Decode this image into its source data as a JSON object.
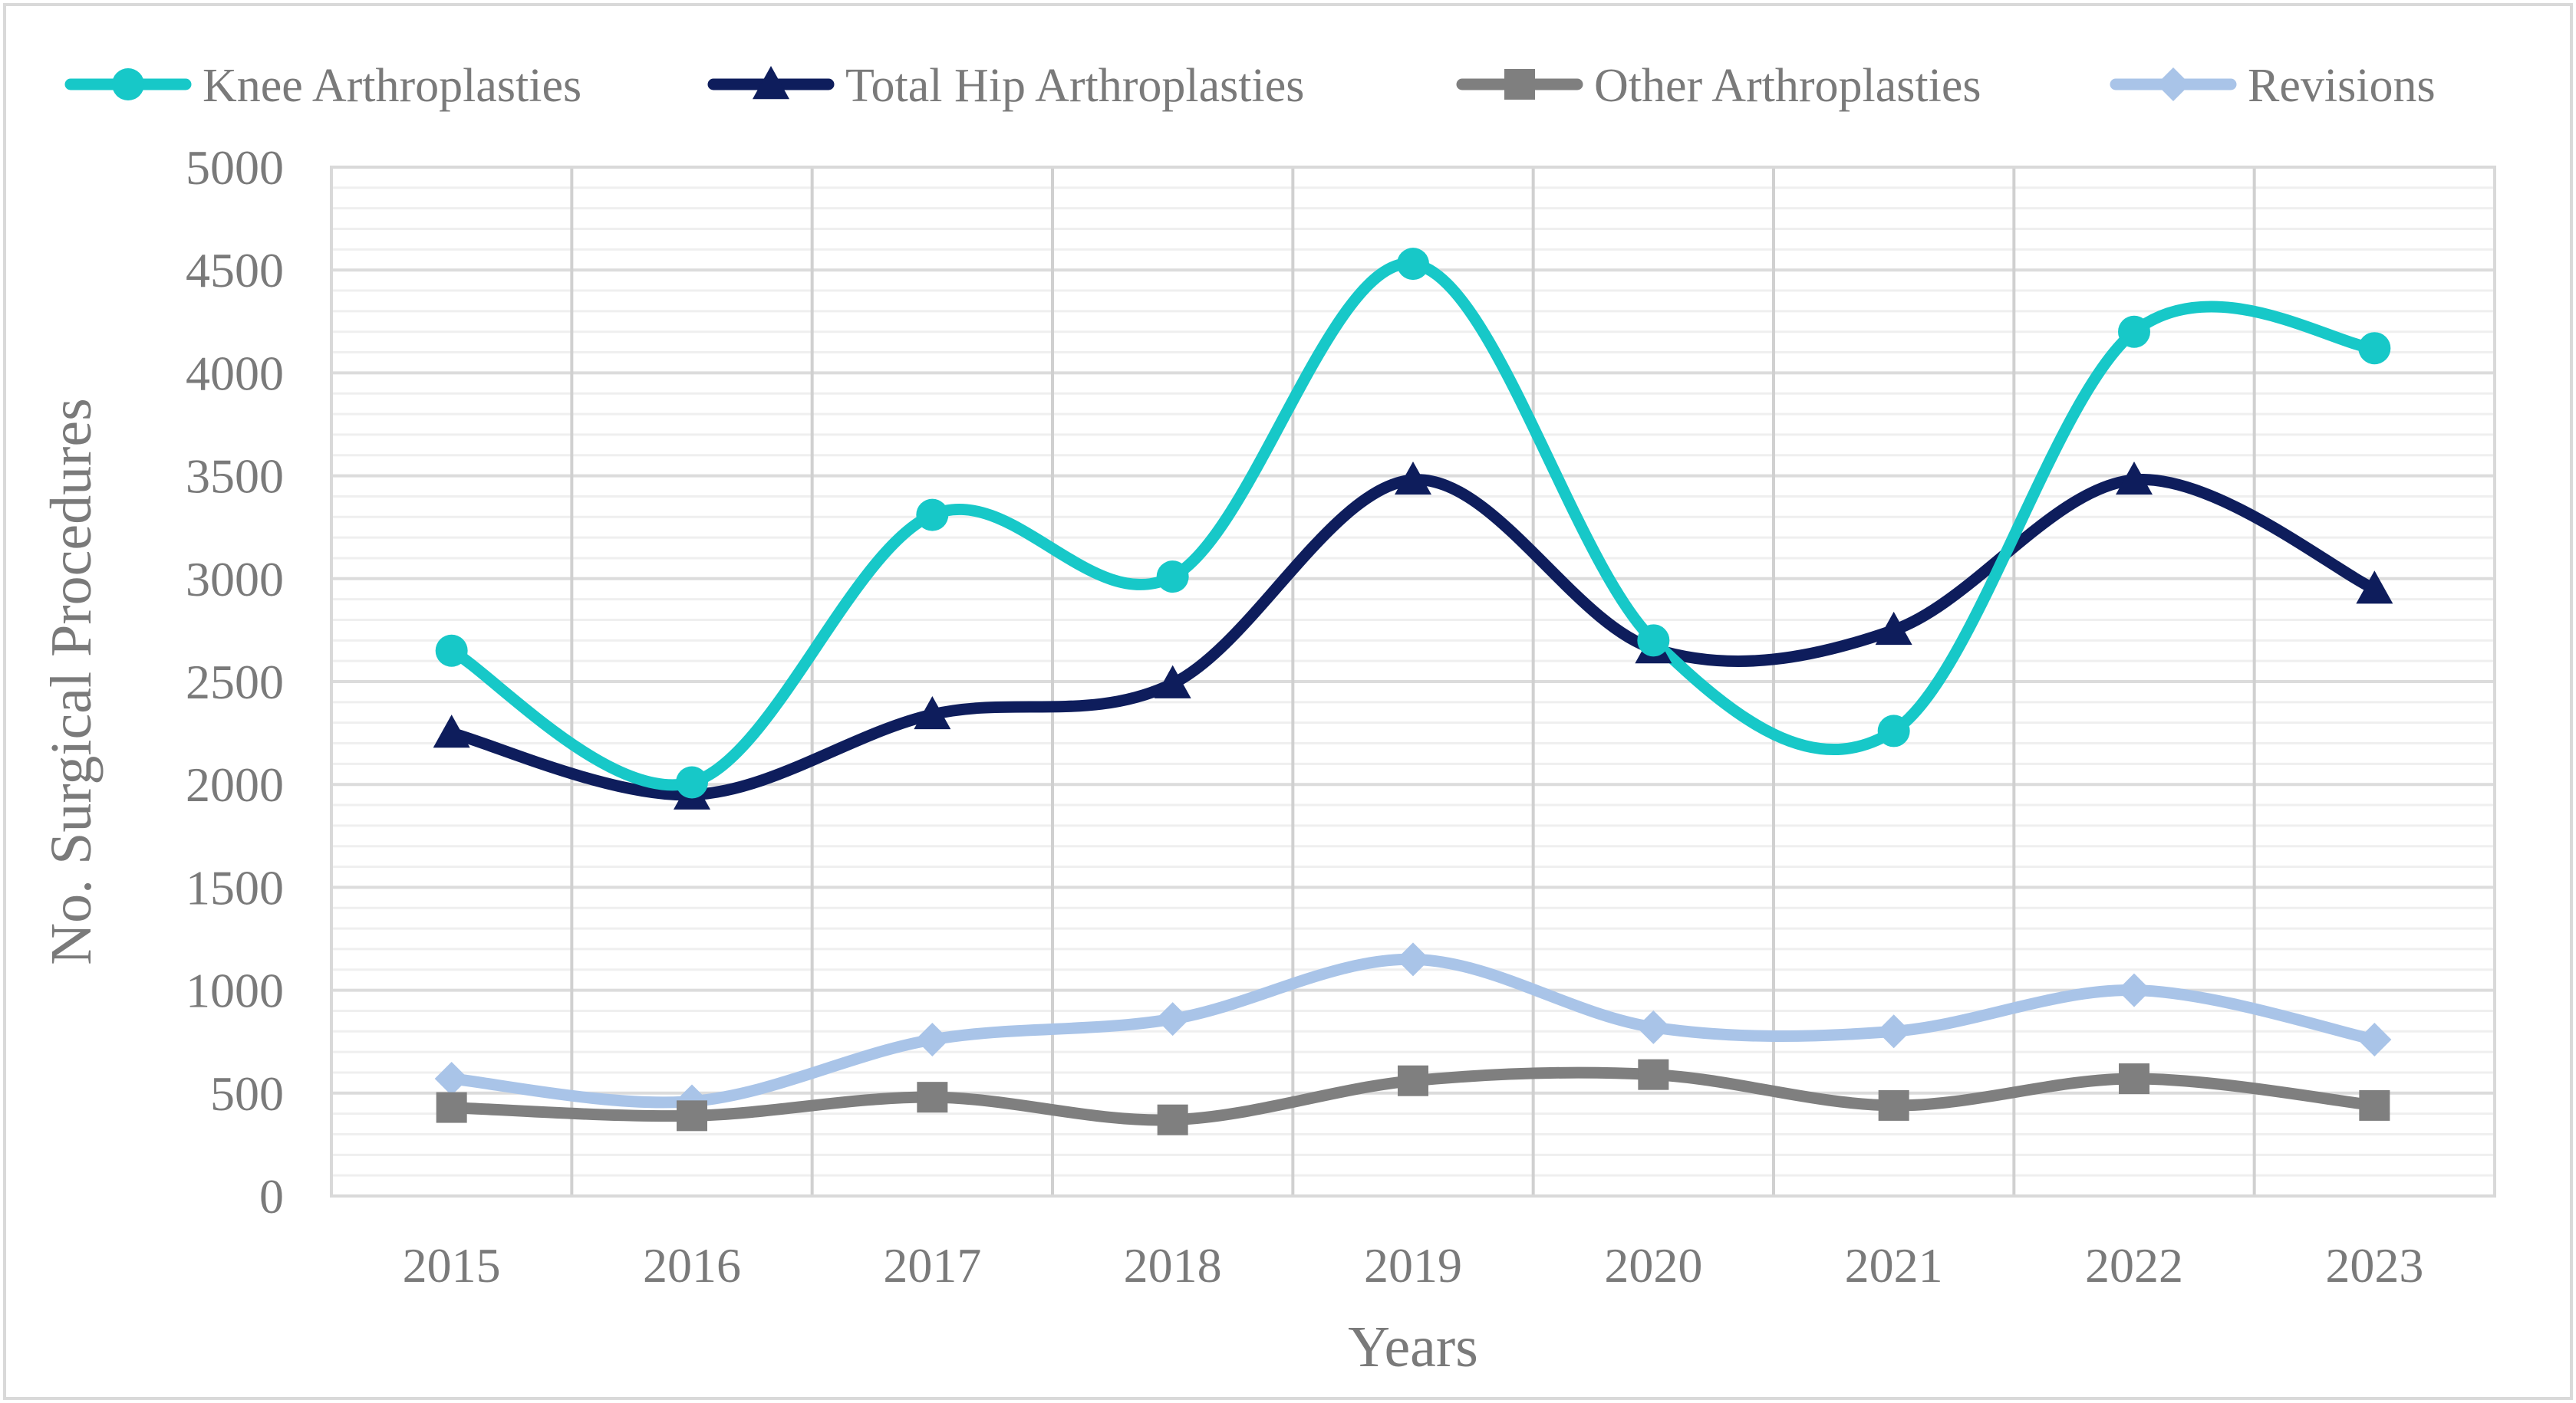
{
  "chart_data": {
    "type": "line",
    "smooth": true,
    "title": "",
    "xlabel": "Years",
    "ylabel": "No. Surgical Procedures",
    "categories": [
      "2015",
      "2016",
      "2017",
      "2018",
      "2019",
      "2020",
      "2021",
      "2022",
      "2023"
    ],
    "ylim": [
      0,
      5000
    ],
    "yticks": [
      0,
      500,
      1000,
      1500,
      2000,
      2500,
      3000,
      3500,
      4000,
      4500,
      5000
    ],
    "minor_gridlines": true,
    "legend_position": "top",
    "series": [
      {
        "name": "Knee Arthroplasties",
        "color": "#17C8C8",
        "marker": "circle",
        "values": [
          2650,
          2010,
          3310,
          3010,
          4530,
          2700,
          2260,
          4200,
          4120
        ]
      },
      {
        "name": "Total Hip Arthroplasties",
        "color": "#0E1D5C",
        "marker": "triangle",
        "values": [
          2250,
          1950,
          2340,
          2490,
          3480,
          2660,
          2750,
          3480,
          2950
        ]
      },
      {
        "name": "Other Arthroplasties",
        "color": "#7F7F7F",
        "marker": "square",
        "values": [
          430,
          390,
          480,
          370,
          560,
          590,
          440,
          570,
          440
        ]
      },
      {
        "name": "Revisions",
        "color": "#A9C4E8",
        "marker": "diamond",
        "values": [
          570,
          460,
          760,
          860,
          1150,
          820,
          800,
          1000,
          760
        ]
      }
    ]
  }
}
